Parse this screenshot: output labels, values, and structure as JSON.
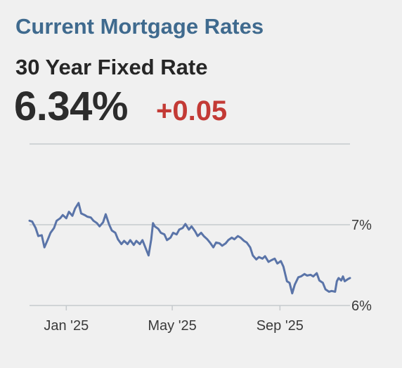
{
  "header": {
    "title": "Current Mortgage Rates",
    "subtitle": "30 Year Fixed Rate",
    "rate": "6.34%",
    "change": "+0.05"
  },
  "colors": {
    "title": "#3f6a8e",
    "change": "#c33a35",
    "line": "#5a74a8",
    "grid": "#c6cacd"
  },
  "chart_data": {
    "type": "line",
    "title": "",
    "xlabel": "",
    "ylabel": "",
    "x_start": "2024-11-19",
    "x_end": "2025-11-20",
    "xticks": [
      {
        "date": "2024-12-31",
        "label": "Jan '25"
      },
      {
        "date": "2025-05-01",
        "label": "May '25"
      },
      {
        "date": "2025-09-01",
        "label": "Sep '25"
      }
    ],
    "yticks": [
      {
        "value": 7,
        "label": "7%"
      },
      {
        "value": 6,
        "label": "6%"
      }
    ],
    "ylim": [
      5.98,
      7.55
    ],
    "grid": true,
    "series": [
      {
        "values": [
          [
            "2024-11-19",
            7.05
          ],
          [
            "2024-11-22",
            7.04
          ],
          [
            "2024-11-26",
            6.96
          ],
          [
            "2024-11-29",
            6.86
          ],
          [
            "2024-12-03",
            6.87
          ],
          [
            "2024-12-06",
            6.72
          ],
          [
            "2024-12-10",
            6.82
          ],
          [
            "2024-12-13",
            6.9
          ],
          [
            "2024-12-17",
            6.96
          ],
          [
            "2024-12-20",
            7.05
          ],
          [
            "2024-12-24",
            7.08
          ],
          [
            "2024-12-27",
            7.12
          ],
          [
            "2024-12-31",
            7.08
          ],
          [
            "2025-01-03",
            7.16
          ],
          [
            "2025-01-07",
            7.11
          ],
          [
            "2025-01-10",
            7.2
          ],
          [
            "2025-01-14",
            7.27
          ],
          [
            "2025-01-17",
            7.14
          ],
          [
            "2025-01-21",
            7.12
          ],
          [
            "2025-01-24",
            7.1
          ],
          [
            "2025-01-28",
            7.09
          ],
          [
            "2025-01-31",
            7.05
          ],
          [
            "2025-02-04",
            7.02
          ],
          [
            "2025-02-07",
            6.98
          ],
          [
            "2025-02-11",
            7.03
          ],
          [
            "2025-02-14",
            7.13
          ],
          [
            "2025-02-18",
            7.0
          ],
          [
            "2025-02-21",
            6.93
          ],
          [
            "2025-02-25",
            6.9
          ],
          [
            "2025-02-28",
            6.82
          ],
          [
            "2025-03-04",
            6.76
          ],
          [
            "2025-03-07",
            6.8
          ],
          [
            "2025-03-11",
            6.76
          ],
          [
            "2025-03-14",
            6.81
          ],
          [
            "2025-03-18",
            6.75
          ],
          [
            "2025-03-21",
            6.8
          ],
          [
            "2025-03-25",
            6.76
          ],
          [
            "2025-03-28",
            6.81
          ],
          [
            "2025-04-01",
            6.7
          ],
          [
            "2025-04-04",
            6.62
          ],
          [
            "2025-04-07",
            6.82
          ],
          [
            "2025-04-09",
            7.02
          ],
          [
            "2025-04-11",
            6.98
          ],
          [
            "2025-04-15",
            6.95
          ],
          [
            "2025-04-18",
            6.9
          ],
          [
            "2025-04-22",
            6.88
          ],
          [
            "2025-04-25",
            6.81
          ],
          [
            "2025-04-29",
            6.84
          ],
          [
            "2025-05-02",
            6.9
          ],
          [
            "2025-05-06",
            6.88
          ],
          [
            "2025-05-09",
            6.94
          ],
          [
            "2025-05-13",
            6.96
          ],
          [
            "2025-05-16",
            7.01
          ],
          [
            "2025-05-20",
            6.94
          ],
          [
            "2025-05-23",
            6.98
          ],
          [
            "2025-05-27",
            6.92
          ],
          [
            "2025-05-30",
            6.86
          ],
          [
            "2025-06-03",
            6.9
          ],
          [
            "2025-06-06",
            6.86
          ],
          [
            "2025-06-10",
            6.82
          ],
          [
            "2025-06-13",
            6.78
          ],
          [
            "2025-06-17",
            6.72
          ],
          [
            "2025-06-20",
            6.78
          ],
          [
            "2025-06-24",
            6.77
          ],
          [
            "2025-06-27",
            6.74
          ],
          [
            "2025-07-01",
            6.77
          ],
          [
            "2025-07-04",
            6.81
          ],
          [
            "2025-07-08",
            6.84
          ],
          [
            "2025-07-11",
            6.82
          ],
          [
            "2025-07-15",
            6.86
          ],
          [
            "2025-07-18",
            6.84
          ],
          [
            "2025-07-22",
            6.8
          ],
          [
            "2025-07-25",
            6.78
          ],
          [
            "2025-07-29",
            6.72
          ],
          [
            "2025-08-01",
            6.62
          ],
          [
            "2025-08-05",
            6.57
          ],
          [
            "2025-08-08",
            6.6
          ],
          [
            "2025-08-12",
            6.58
          ],
          [
            "2025-08-15",
            6.61
          ],
          [
            "2025-08-19",
            6.54
          ],
          [
            "2025-08-22",
            6.56
          ],
          [
            "2025-08-26",
            6.58
          ],
          [
            "2025-08-29",
            6.52
          ],
          [
            "2025-09-02",
            6.55
          ],
          [
            "2025-09-05",
            6.48
          ],
          [
            "2025-09-09",
            6.3
          ],
          [
            "2025-09-12",
            6.28
          ],
          [
            "2025-09-15",
            6.15
          ],
          [
            "2025-09-18",
            6.26
          ],
          [
            "2025-09-22",
            6.35
          ],
          [
            "2025-09-25",
            6.36
          ],
          [
            "2025-09-29",
            6.39
          ],
          [
            "2025-10-02",
            6.37
          ],
          [
            "2025-10-06",
            6.38
          ],
          [
            "2025-10-09",
            6.36
          ],
          [
            "2025-10-13",
            6.4
          ],
          [
            "2025-10-16",
            6.31
          ],
          [
            "2025-10-20",
            6.28
          ],
          [
            "2025-10-23",
            6.2
          ],
          [
            "2025-10-27",
            6.17
          ],
          [
            "2025-10-30",
            6.18
          ],
          [
            "2025-11-03",
            6.17
          ],
          [
            "2025-11-05",
            6.3
          ],
          [
            "2025-11-07",
            6.34
          ],
          [
            "2025-11-10",
            6.31
          ],
          [
            "2025-11-12",
            6.36
          ],
          [
            "2025-11-14",
            6.3
          ],
          [
            "2025-11-18",
            6.33
          ],
          [
            "2025-11-20",
            6.34
          ]
        ]
      }
    ]
  }
}
